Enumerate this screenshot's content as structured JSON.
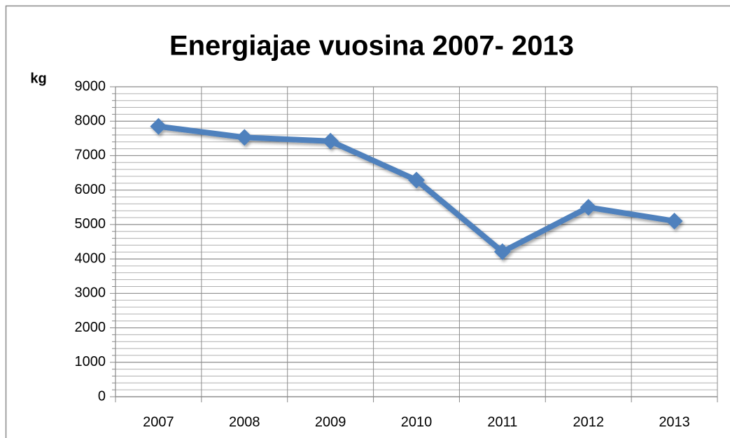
{
  "chart_data": {
    "type": "line",
    "title": "Energiajae vuosina 2007- 2013",
    "y_label": "kg",
    "categories": [
      "2007",
      "2008",
      "2009",
      "2010",
      "2011",
      "2012",
      "2013"
    ],
    "series": [
      {
        "name": "Energiajae",
        "color": "#4f81bd",
        "values": [
          7850,
          7530,
          7420,
          6290,
          4210,
          5500,
          5100
        ]
      }
    ],
    "ylim": [
      0,
      9000
    ],
    "yticks": [
      0,
      1000,
      2000,
      3000,
      4000,
      5000,
      6000,
      7000,
      8000,
      9000
    ],
    "grid": true,
    "minor_grid": true,
    "legend": false,
    "marker": "diamond"
  }
}
